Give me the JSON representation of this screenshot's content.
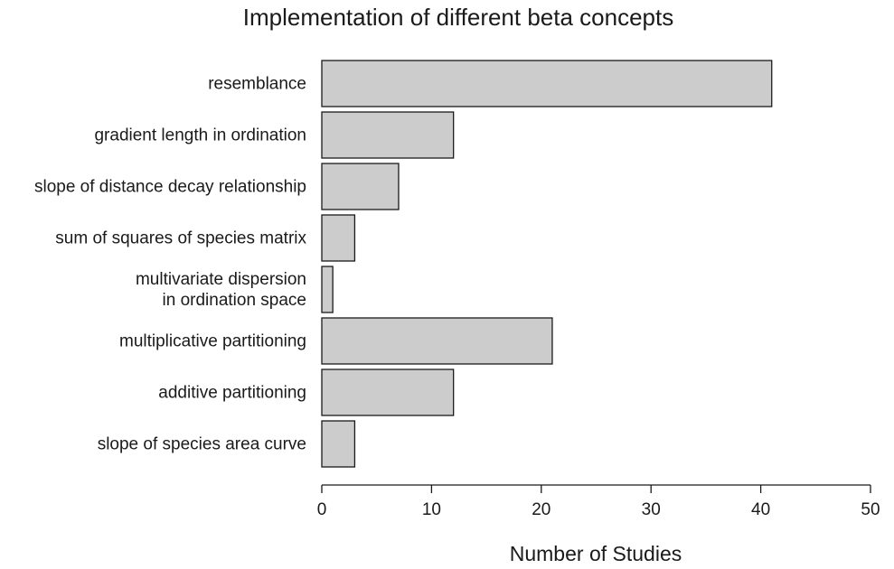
{
  "chart_data": {
    "type": "bar",
    "orientation": "horizontal",
    "title": "Implementation of different beta concepts",
    "xlabel": "Number of Studies",
    "ylabel": "",
    "xlim": [
      0,
      50
    ],
    "xticks": [
      0,
      10,
      20,
      30,
      40,
      50
    ],
    "grid": false,
    "bar_color": "#cccccc",
    "categories": [
      "resemblance",
      "gradient length in ordination",
      "slope of distance decay relationship",
      "sum of squares of species matrix",
      "multivariate dispersion\nin ordination space",
      "multiplicative partitioning",
      "additive partitioning",
      "slope of species area curve"
    ],
    "values": [
      41,
      12,
      7,
      3,
      1,
      21,
      12,
      3
    ]
  }
}
